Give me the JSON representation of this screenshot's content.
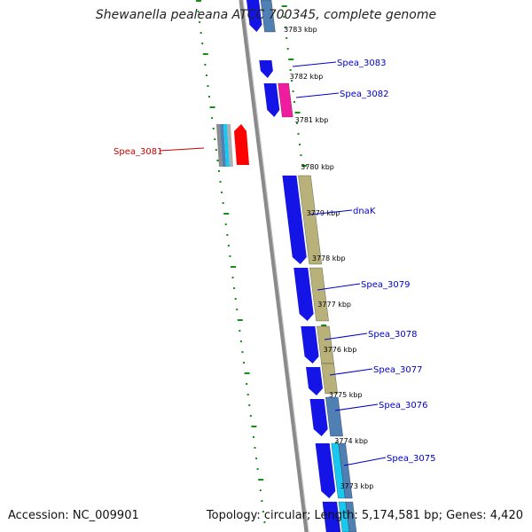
{
  "title": "Shewanella pealeana ATCC 700345, complete genome",
  "footer": {
    "accession": "Accession: NC_009901",
    "summary": "Topology: circular; Length: 5,174,581 bp; Genes: 4,420"
  },
  "colors": {
    "backbone": "#8a8a8a",
    "cds_forward": "#1414e6",
    "gene_khaki": "#b8b27a",
    "gene_steel": "#4f7fb3",
    "gene_cyan": "#19c8f0",
    "gene_magenta": "#f01ca0",
    "gene_red": "#ff0000",
    "gc_marks": "#1a8c1a",
    "label_blue": "#0000cc",
    "label_red": "#cc0000"
  },
  "scale_ticks": [
    "3783 kbp",
    "3782 kbp",
    "3781 kbp",
    "3780 kbp",
    "3779 kbp",
    "3778 kbp",
    "3777 kbp",
    "3776 kbp",
    "3775 kbp",
    "3774 kbp",
    "3773 kbp"
  ],
  "gene_labels": [
    {
      "name": "Spea_3083",
      "color": "blue"
    },
    {
      "name": "Spea_3082",
      "color": "blue"
    },
    {
      "name": "Spea_3081",
      "color": "red"
    },
    {
      "name": "dnaK",
      "color": "blue"
    },
    {
      "name": "Spea_3079",
      "color": "blue"
    },
    {
      "name": "Spea_3078",
      "color": "blue"
    },
    {
      "name": "Spea_3077",
      "color": "blue"
    },
    {
      "name": "Spea_3076",
      "color": "blue"
    },
    {
      "name": "Spea_3075",
      "color": "blue"
    }
  ]
}
